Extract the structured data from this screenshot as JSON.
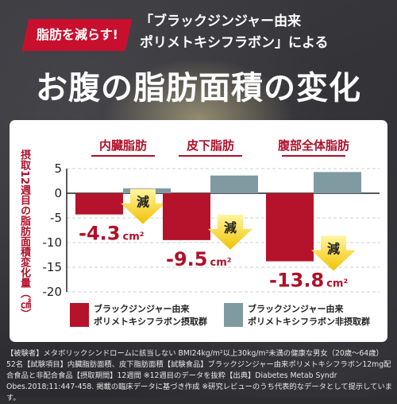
{
  "header": {
    "badge": "脂肪を減らす!",
    "headline_line1": "「ブラックジンジャー由来",
    "headline_line2": "ポリメトキシフラボン」による",
    "title": "お腹の脂肪面積の変化"
  },
  "chart_data": {
    "type": "bar",
    "ylabel": "摂取12週目の脂肪面積変化量（㎠）",
    "categories": [
      "内臓脂肪",
      "皮下脂肪",
      "腹部全体脂肪"
    ],
    "ylim": [
      -20,
      5
    ],
    "yticks": [
      "5",
      "0",
      "-5",
      "-10",
      "-15",
      "-20"
    ],
    "grid": true,
    "legend_position": "bottom",
    "series": [
      {
        "name": "ブラックジンジャー由来ポリメトキシフラボン摂取群",
        "legend_line1": "ブラックジンジャー由来",
        "legend_line2": "ポリメトキシフラボン摂取群",
        "values": [
          -4.3,
          -9.5,
          -13.8
        ],
        "color": "#b5132b"
      },
      {
        "name": "ブラックジンジャー由来ポリメトキシフラボン非摂取群",
        "legend_line1": "ブラックジンジャー由来",
        "legend_line2": "ポリメトキシフラボン非摂取群",
        "values": [
          1.0,
          3.6,
          4.3
        ],
        "color": "#7f9aa1"
      }
    ],
    "data_labels": [
      "-4.3",
      "-9.5",
      "-13.8"
    ],
    "unit": "cm²",
    "arrow_label": "減"
  },
  "footnote": "【被験者】メタボリックシンドロームに該当しない BMI24kg/m²以上30kg/m²未満の健康な男女（20歳〜64歳）52名【試験項目】内臓脂肪面積、皮下脂肪面積【試験食品】ブラックジンジャー由来ポリメトキシフラボン12mg配合食品と非配合食品【摂取期間】12週間 ※12週目のデータを抜粋【出典】Diabetes Metab Syndr Obes.2018;11:447-458. 掲載の臨床データに基づき作成 ※研究レビューのうち代表的なデータとして提示しています。"
}
